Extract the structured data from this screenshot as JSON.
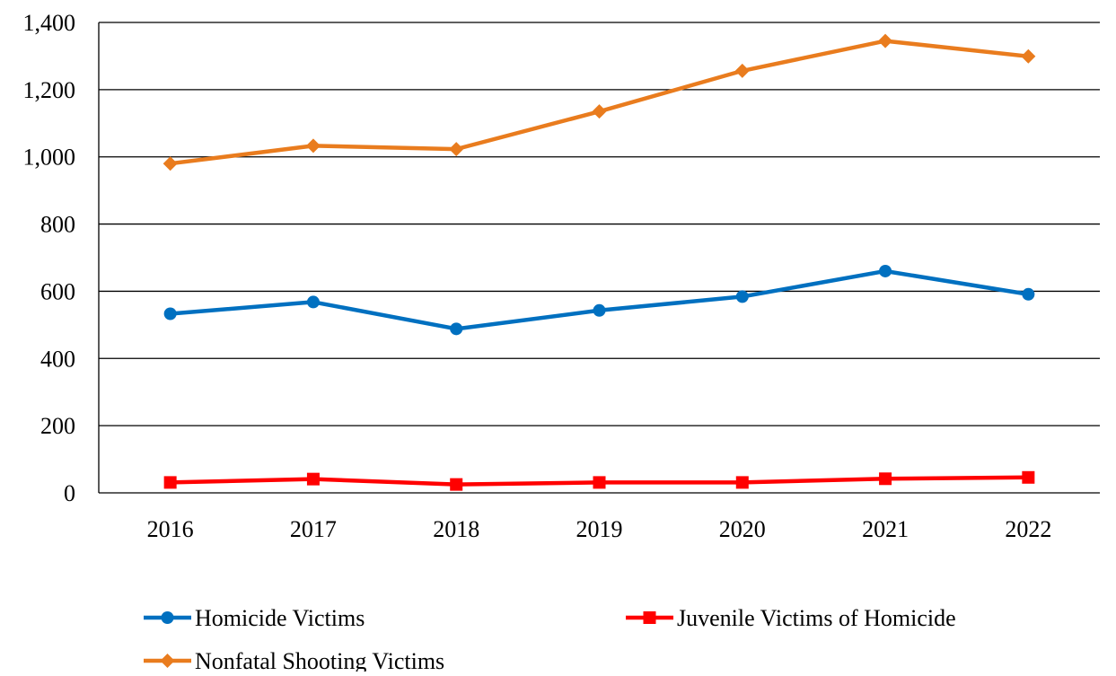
{
  "chart_data": {
    "type": "line",
    "categories": [
      "2016",
      "2017",
      "2018",
      "2019",
      "2020",
      "2021",
      "2022"
    ],
    "series": [
      {
        "name": "Homicide Victims",
        "values": [
          533,
          568,
          488,
          543,
          584,
          660,
          591
        ],
        "color": "#0070C0",
        "marker": "circle"
      },
      {
        "name": "Juvenile Victims of Homicide",
        "values": [
          31,
          41,
          25,
          31,
          31,
          42,
          46
        ],
        "color": "#FF0000",
        "marker": "square"
      },
      {
        "name": "Nonfatal Shooting Victims",
        "values": [
          980,
          1033,
          1023,
          1135,
          1256,
          1345,
          1299
        ],
        "color": "#E97C1E",
        "marker": "diamond"
      }
    ],
    "ylim": [
      0,
      1400
    ],
    "yticks": [
      0,
      200,
      400,
      600,
      800,
      1000,
      1200,
      1400
    ],
    "ytick_labels": [
      "0",
      "200",
      "400",
      "600",
      "800",
      "1,000",
      "1,200",
      "1,400"
    ],
    "grid": "horizontal",
    "legend_position": "bottom",
    "title": "",
    "xlabel": "",
    "ylabel": ""
  }
}
